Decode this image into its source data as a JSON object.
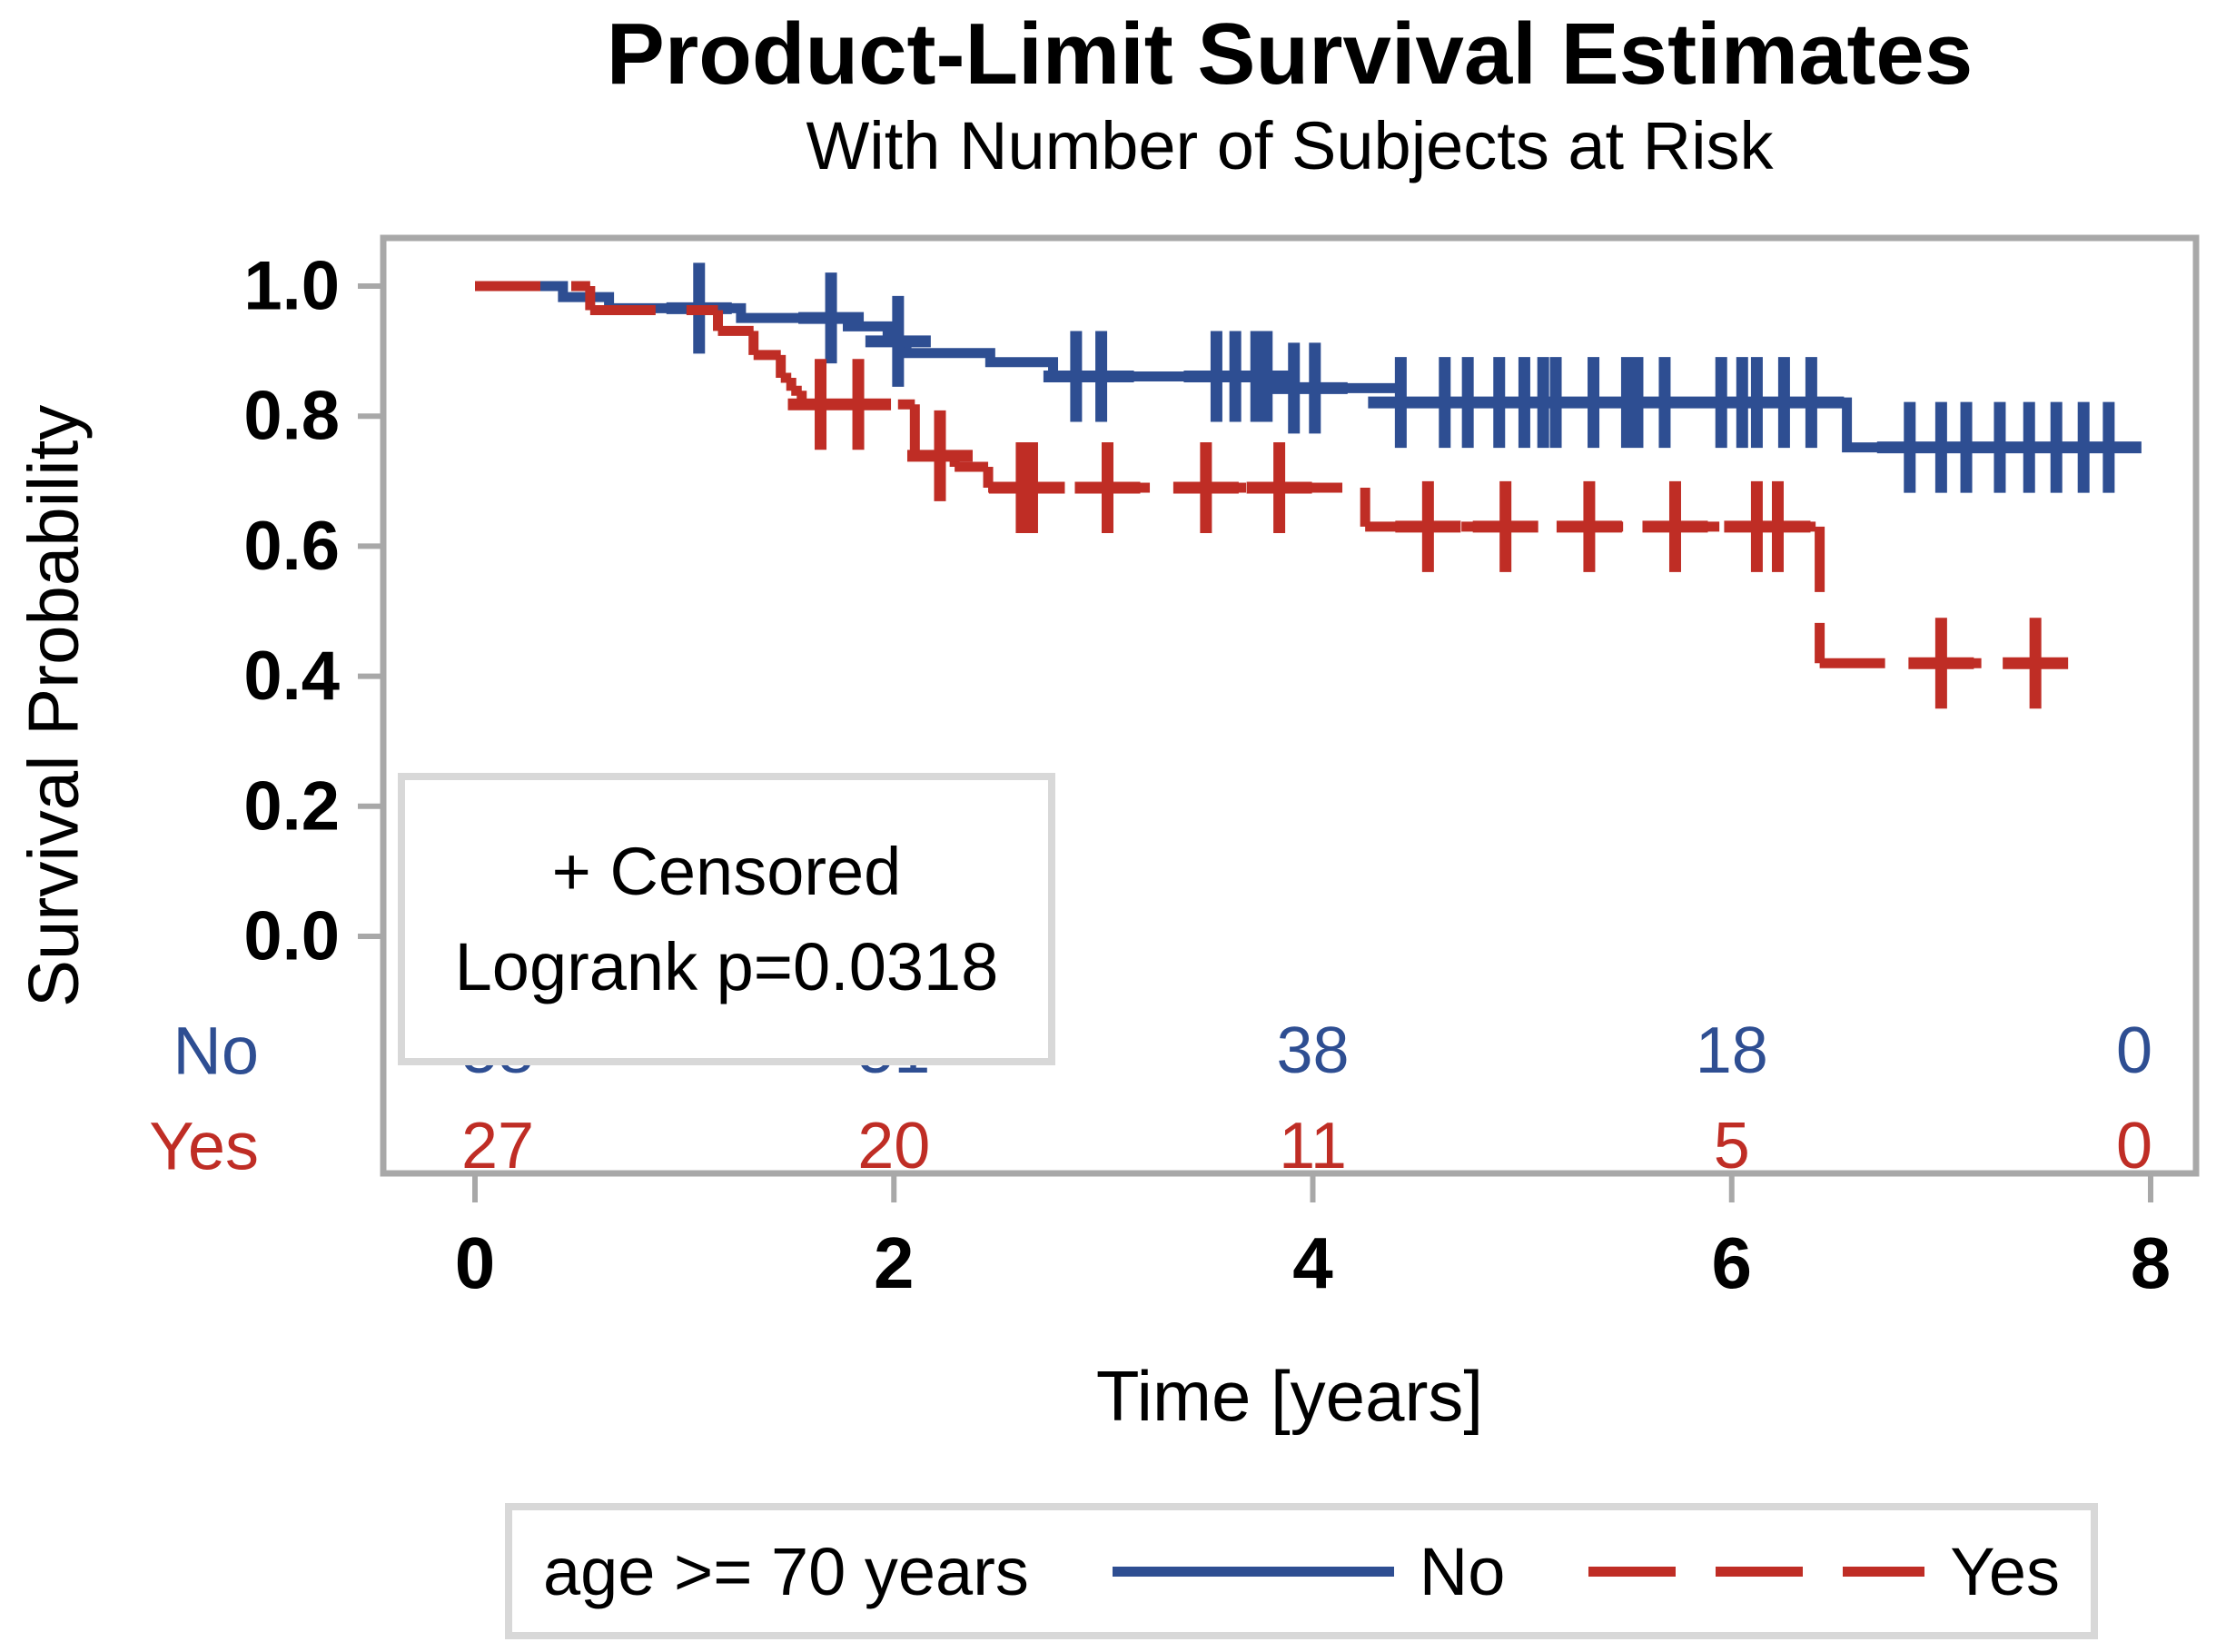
{
  "chart_data": {
    "type": "line",
    "subtype": "kaplan-meier-step",
    "title": "Product-Limit Survival Estimates",
    "subtitle": "With Number of Subjects at Risk",
    "xlabel": "Time [years]",
    "ylabel": "Survival Probability",
    "xlim": [
      0,
      8
    ],
    "ylim": [
      0.0,
      1.0
    ],
    "xticks": [
      0,
      2,
      4,
      6,
      8
    ],
    "yticks": [
      1.0,
      0.8,
      0.6,
      0.4,
      0.2,
      0.0
    ],
    "grid": false,
    "legend_position": "bottom",
    "annotation": {
      "censored_label": "+ Censored",
      "logrank_label": "Logrank p=0.0318"
    },
    "axis_color": "#a8a8a8",
    "series": [
      {
        "name": "No",
        "color": "#2e4e92",
        "line_style": "solid",
        "steps": [
          [
            0,
            1.0
          ],
          [
            0.42,
            0.983
          ],
          [
            0.64,
            0.966
          ],
          [
            1.27,
            0.951
          ],
          [
            1.78,
            0.938
          ],
          [
            1.97,
            0.915
          ],
          [
            2.06,
            0.897
          ],
          [
            2.46,
            0.883
          ],
          [
            2.76,
            0.861
          ],
          [
            3.82,
            0.843
          ],
          [
            4.42,
            0.821
          ],
          [
            6.55,
            0.752
          ],
          [
            7.84,
            0.752
          ]
        ],
        "censors": [
          [
            1.07,
            0.966
          ],
          [
            1.7,
            0.951
          ],
          [
            2.02,
            0.915
          ],
          [
            2.87,
            0.861
          ],
          [
            2.99,
            0.861
          ],
          [
            3.54,
            0.861
          ],
          [
            3.63,
            0.861
          ],
          [
            3.73,
            0.861
          ],
          [
            3.78,
            0.861
          ],
          [
            3.91,
            0.843
          ],
          [
            4.01,
            0.843
          ],
          [
            4.42,
            0.821
          ],
          [
            4.63,
            0.821
          ],
          [
            4.74,
            0.821
          ],
          [
            4.89,
            0.821
          ],
          [
            5.01,
            0.821
          ],
          [
            5.1,
            0.821
          ],
          [
            5.16,
            0.821
          ],
          [
            5.34,
            0.821
          ],
          [
            5.5,
            0.821
          ],
          [
            5.55,
            0.821
          ],
          [
            5.68,
            0.821
          ],
          [
            5.95,
            0.821
          ],
          [
            6.05,
            0.821
          ],
          [
            6.12,
            0.821
          ],
          [
            6.25,
            0.821
          ],
          [
            6.38,
            0.821
          ],
          [
            6.85,
            0.752
          ],
          [
            7.0,
            0.752
          ],
          [
            7.12,
            0.752
          ],
          [
            7.28,
            0.752
          ],
          [
            7.42,
            0.752
          ],
          [
            7.55,
            0.752
          ],
          [
            7.68,
            0.752
          ],
          [
            7.8,
            0.752
          ]
        ]
      },
      {
        "name": "Yes",
        "color": "#bf2d25",
        "line_style": "dashed",
        "steps": [
          [
            0,
            1.0
          ],
          [
            0.55,
            0.963
          ],
          [
            1.16,
            0.931
          ],
          [
            1.33,
            0.894
          ],
          [
            1.46,
            0.859
          ],
          [
            1.51,
            0.839
          ],
          [
            1.56,
            0.818
          ],
          [
            2.1,
            0.739
          ],
          [
            2.29,
            0.722
          ],
          [
            2.45,
            0.69
          ],
          [
            4.25,
            0.63
          ],
          [
            6.42,
            0.42
          ],
          [
            7.52,
            0.42
          ]
        ],
        "censors": [
          [
            1.65,
            0.818
          ],
          [
            1.83,
            0.818
          ],
          [
            2.22,
            0.739
          ],
          [
            2.61,
            0.69
          ],
          [
            2.66,
            0.69
          ],
          [
            3.02,
            0.69
          ],
          [
            3.49,
            0.69
          ],
          [
            3.84,
            0.69
          ],
          [
            4.55,
            0.63
          ],
          [
            4.92,
            0.63
          ],
          [
            5.32,
            0.63
          ],
          [
            5.73,
            0.63
          ],
          [
            6.12,
            0.63
          ],
          [
            6.22,
            0.63
          ],
          [
            7.0,
            0.42
          ],
          [
            7.45,
            0.42
          ]
        ]
      }
    ],
    "at_risk": {
      "times": [
        0,
        2,
        4,
        6,
        8
      ],
      "rows": [
        {
          "label": "No",
          "color": "#2e4e92",
          "counts": [
            58,
            51,
            38,
            18,
            0
          ]
        },
        {
          "label": "Yes",
          "color": "#bf2d25",
          "counts": [
            27,
            20,
            11,
            5,
            0
          ]
        }
      ]
    },
    "legend": {
      "title": "age >= 70 years",
      "entries": [
        {
          "label": "No",
          "style": "solid"
        },
        {
          "label": "Yes",
          "style": "dashed"
        }
      ]
    }
  }
}
